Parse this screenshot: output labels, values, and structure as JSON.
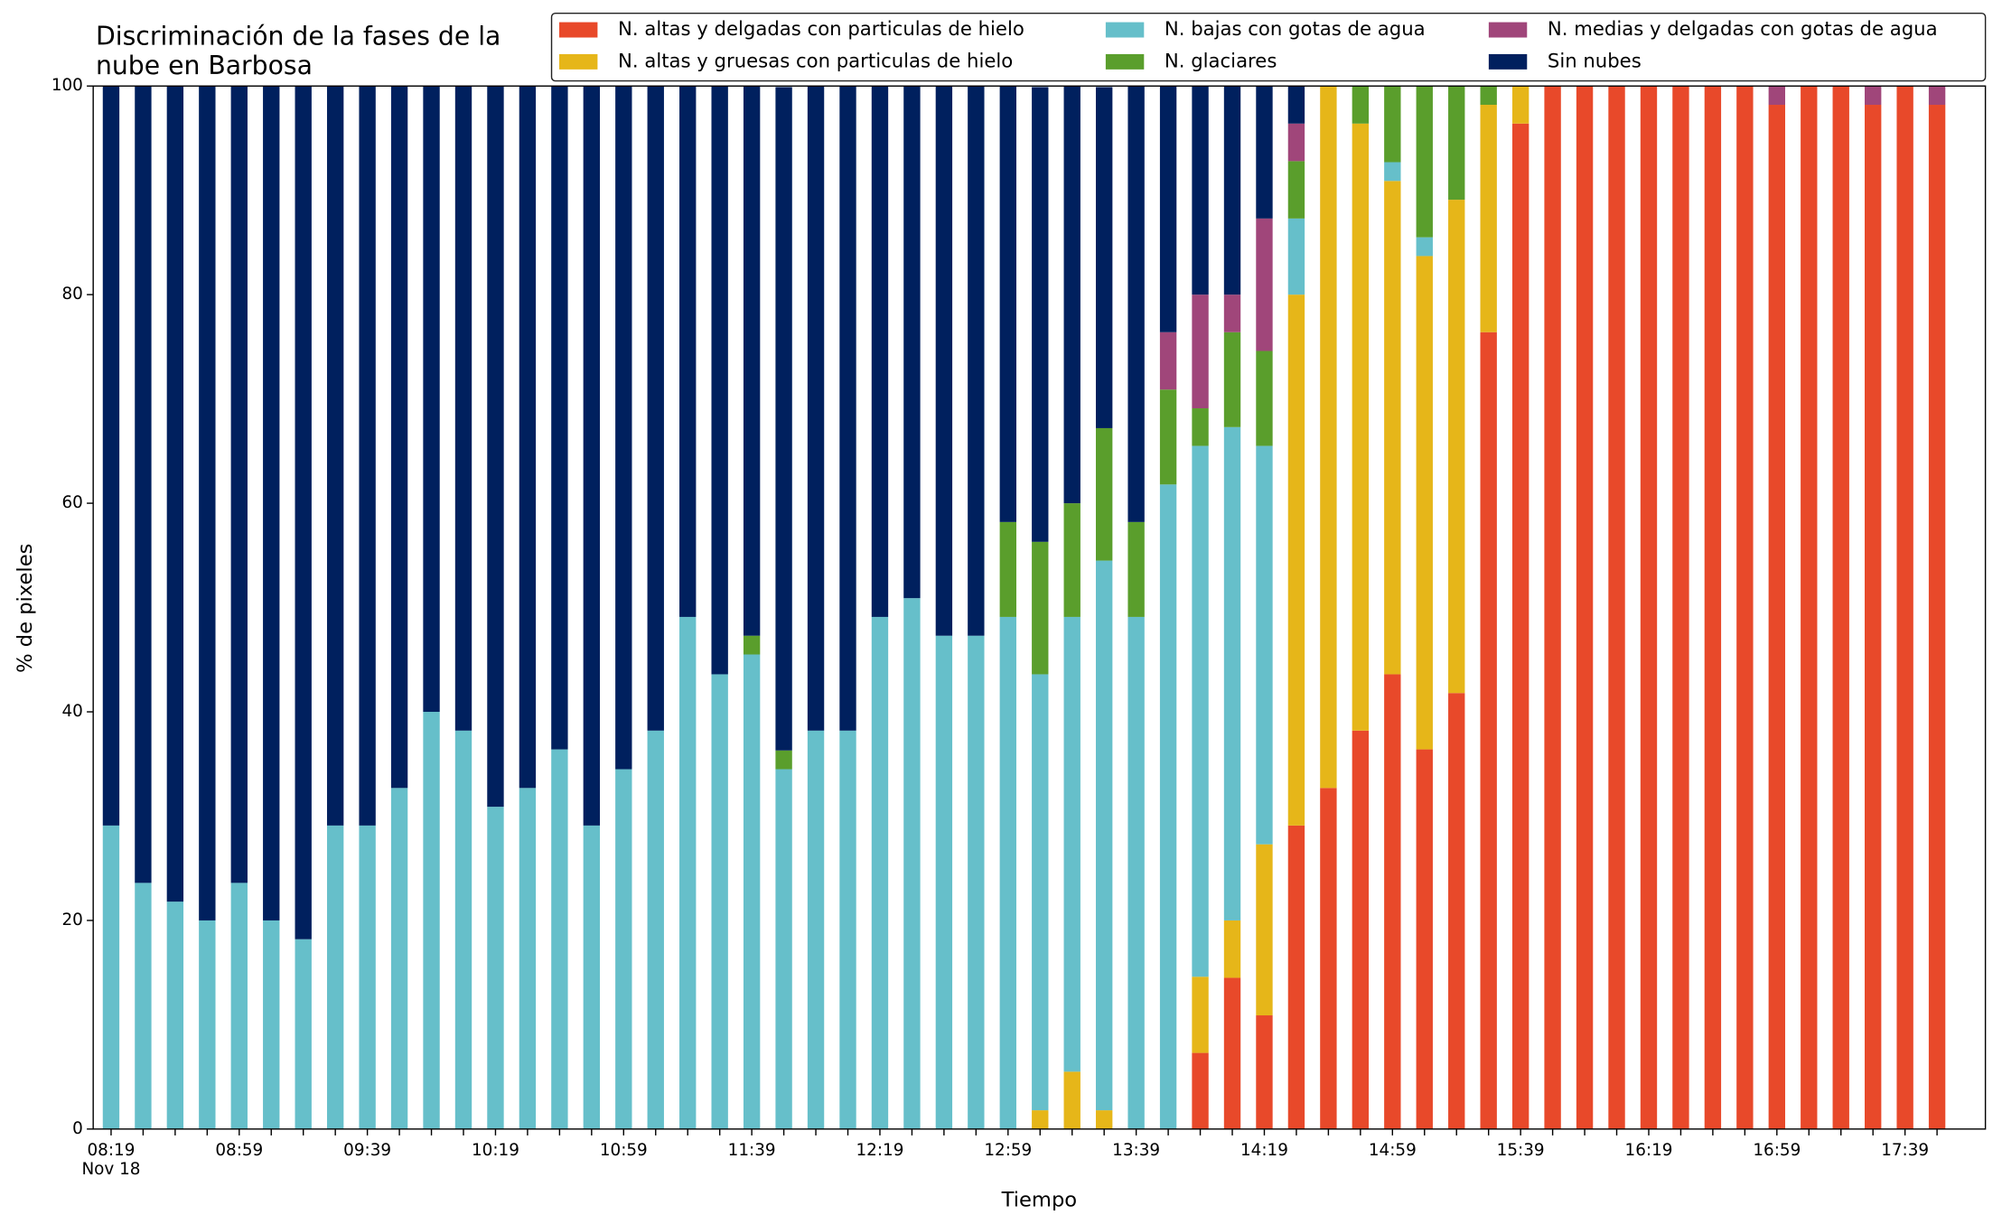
{
  "chart_data": {
    "type": "stacked_bar",
    "title": [
      "Discriminación de la fases de la",
      "nube en Barbosa"
    ],
    "xlabel": "Tiempo",
    "ylabel": "% de pixeles",
    "date_label": "Nov 18",
    "ylim": [
      0,
      100
    ],
    "yticks": [
      0,
      20,
      40,
      60,
      80,
      100
    ],
    "categories": [
      "08:19",
      null,
      null,
      null,
      "08:59",
      null,
      null,
      null,
      "09:39",
      null,
      null,
      null,
      "10:19",
      null,
      null,
      null,
      "10:59",
      null,
      null,
      null,
      "11:39",
      null,
      null,
      null,
      "12:19",
      null,
      null,
      null,
      "12:59",
      null,
      null,
      null,
      "13:39",
      null,
      null,
      null,
      "14:19",
      null,
      null,
      null,
      "14:59",
      null,
      null,
      null,
      "15:39",
      null,
      null,
      null,
      "16:19",
      null,
      null,
      null,
      "16:59",
      null,
      null,
      null,
      "17:39",
      null
    ],
    "series": [
      {
        "name": "N. altas y delgadas con particulas de hielo",
        "color": "#e8492a",
        "values": [
          0,
          0,
          0,
          0,
          0,
          0,
          0,
          0,
          0,
          0,
          0,
          0,
          0,
          0,
          0,
          0,
          0,
          0,
          0,
          0,
          0,
          0,
          0,
          0,
          0,
          0,
          0,
          0,
          0,
          0,
          0,
          0,
          0,
          0,
          7.3,
          14.5,
          10.9,
          29.1,
          32.7,
          38.2,
          43.6,
          36.4,
          41.8,
          76.4,
          96.4,
          100,
          100,
          100,
          100,
          100,
          100,
          100,
          98.2,
          100,
          100,
          98.2,
          100,
          98.2
        ]
      },
      {
        "name": "N. altas y gruesas con particulas de hielo",
        "color": "#e6b619",
        "values": [
          0,
          0,
          0,
          0,
          0,
          0,
          0,
          0,
          0,
          0,
          0,
          0,
          0,
          0,
          0,
          0,
          0,
          0,
          0,
          0,
          0,
          0,
          0,
          0,
          0,
          0,
          0,
          0,
          0,
          1.8,
          5.5,
          1.8,
          0,
          0,
          7.3,
          5.5,
          16.4,
          50.9,
          67.3,
          58.2,
          47.3,
          47.3,
          47.3,
          21.8,
          3.6,
          0,
          0,
          0,
          0,
          0,
          0,
          0,
          0,
          0,
          0,
          0,
          0,
          0
        ]
      },
      {
        "name": "N. bajas con gotas de agua",
        "color": "#66bfca",
        "values": [
          29.1,
          23.6,
          21.8,
          20.0,
          23.6,
          20.0,
          18.2,
          29.1,
          29.1,
          32.7,
          40.0,
          38.2,
          30.9,
          32.7,
          36.4,
          29.1,
          34.5,
          38.2,
          49.1,
          43.6,
          45.5,
          34.5,
          38.2,
          38.2,
          49.1,
          50.9,
          47.3,
          47.3,
          49.1,
          41.8,
          43.6,
          52.7,
          49.1,
          61.8,
          50.9,
          47.3,
          38.2,
          7.3,
          0,
          0,
          1.8,
          1.8,
          0,
          0,
          0,
          0,
          0,
          0,
          0,
          0,
          0,
          0,
          0,
          0,
          0,
          0,
          0,
          0
        ]
      },
      {
        "name": "N. glaciares",
        "color": "#5a9e2c",
        "values": [
          0,
          0,
          0,
          0,
          0,
          0,
          0,
          0,
          0,
          0,
          0,
          0,
          0,
          0,
          0,
          0,
          0,
          0,
          0,
          0,
          1.8,
          1.8,
          0,
          0,
          0,
          0,
          0,
          0,
          9.1,
          12.7,
          10.9,
          12.7,
          9.1,
          9.1,
          3.6,
          9.1,
          9.1,
          5.5,
          0,
          3.6,
          7.3,
          14.5,
          10.9,
          1.8,
          0,
          0,
          0,
          0,
          0,
          0,
          0,
          0,
          0,
          0,
          0,
          0,
          0,
          0
        ]
      },
      {
        "name": "N. medias y delgadas con gotas de agua",
        "color": "#a0467a",
        "values": [
          0,
          0,
          0,
          0,
          0,
          0,
          0,
          0,
          0,
          0,
          0,
          0,
          0,
          0,
          0,
          0,
          0,
          0,
          0,
          0,
          0,
          0,
          0,
          0,
          0,
          0,
          0,
          0,
          0,
          0,
          0,
          0,
          0,
          5.5,
          10.9,
          3.6,
          12.7,
          3.6,
          0,
          0,
          0,
          0,
          0,
          0,
          0,
          0,
          0,
          0,
          0,
          0,
          0,
          0,
          1.8,
          0,
          0,
          1.8,
          0,
          1.8
        ]
      },
      {
        "name": "Sin nubes",
        "color": "#00205e",
        "values": [
          70.9,
          76.4,
          78.2,
          80.0,
          76.4,
          80.0,
          81.8,
          70.9,
          70.9,
          67.3,
          60.0,
          61.8,
          69.1,
          67.3,
          63.6,
          70.9,
          65.5,
          61.8,
          50.9,
          56.4,
          52.7,
          63.6,
          61.8,
          61.8,
          50.9,
          49.1,
          52.7,
          52.7,
          41.8,
          43.6,
          40.0,
          32.7,
          41.8,
          23.6,
          20.0,
          20.0,
          12.7,
          3.6,
          0,
          0,
          0,
          0,
          0,
          0,
          0,
          0,
          0,
          0,
          0,
          0,
          0,
          0,
          0,
          0,
          0,
          0,
          0,
          0
        ]
      }
    ]
  }
}
